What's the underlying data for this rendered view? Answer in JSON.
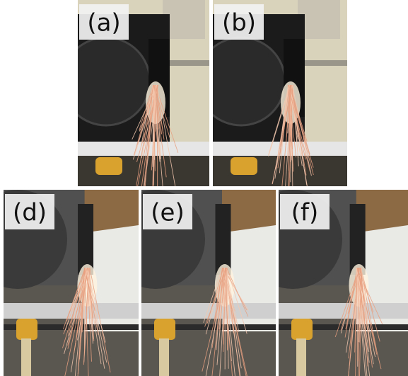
{
  "panels": [
    {
      "label": "(a)"
    },
    {
      "label": "(b)"
    },
    {
      "label": "(d)"
    },
    {
      "label": "(e)"
    },
    {
      "label": "(f)"
    }
  ]
}
